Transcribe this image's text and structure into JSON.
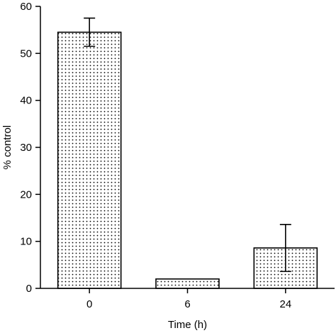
{
  "chart_data": {
    "type": "bar",
    "categories": [
      "0",
      "6",
      "24"
    ],
    "values": [
      54.5,
      2.0,
      8.6
    ],
    "error_upper": [
      57.5,
      2.0,
      13.6
    ],
    "error_lower": [
      51.5,
      2.0,
      3.6
    ],
    "xlabel": "Time (h)",
    "ylabel": "% control",
    "ylim": [
      0,
      60
    ],
    "yticks": [
      0,
      10,
      20,
      30,
      40,
      50,
      60
    ],
    "bar_fill": "dotted pattern",
    "bar_color": "#000000",
    "background": "#ffffff",
    "grid": false,
    "legend": "none"
  }
}
